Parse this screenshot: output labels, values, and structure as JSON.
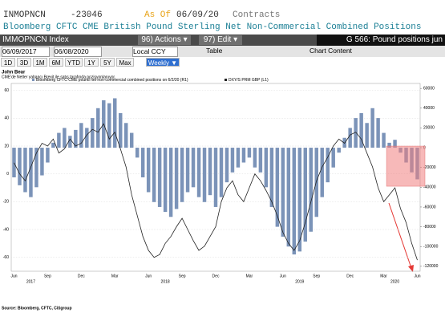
{
  "header": {
    "ticker": "INMOPNCN",
    "value": -23046,
    "as_of_label": "As Of",
    "date": "06/09/20",
    "unit": "Contracts",
    "description": "Bloomberg CFTC CME British Pound Sterling Net Non-Commercial Combined Positions"
  },
  "toolbar": {
    "security": "IMMOPNCN Index",
    "actions": "96) Actions ▾",
    "edit": "97) Edit ▾",
    "chart_name": "G 566: Pound positions jun",
    "start_date": "06/09/2017",
    "end_date": "06/08/2020",
    "currency": "Local CCY",
    "table": "Table",
    "chart_content": "Chart Content",
    "periods": [
      "1D",
      "3D",
      "1M",
      "6M",
      "YTD",
      "1Y",
      "5Y",
      "Max"
    ],
    "frequency": "Weekly ▼"
  },
  "chart_data": {
    "type": "combo",
    "title": "John Bear",
    "subtitle": "CME'de Netler yabancı Brexit ile satış tarafında pozisyonlanıyor.",
    "source": "Source: Bloomberg, CFTC, Citigroup",
    "categories": [
      "Jun",
      null,
      null,
      null,
      null,
      null,
      "Sep",
      null,
      null,
      null,
      null,
      null,
      "Dec",
      null,
      null,
      null,
      null,
      null,
      "Mar",
      null,
      null,
      null,
      null,
      null,
      "Jun",
      null,
      null,
      null,
      null,
      null,
      "Sep",
      null,
      null,
      null,
      null,
      null,
      "Dec",
      null,
      null,
      null,
      null,
      null,
      "Mar",
      null,
      null,
      null,
      null,
      null,
      "Jun",
      null,
      null,
      null,
      null,
      null,
      "Sep",
      null,
      null,
      null,
      null,
      null,
      "Dec",
      null,
      null,
      null,
      null,
      null,
      "Mar",
      null,
      null,
      null,
      null,
      null,
      "Jun"
    ],
    "year_categories": [
      null,
      null,
      null,
      "2017",
      null,
      null,
      null,
      null,
      null,
      null,
      null,
      null,
      null,
      null,
      null,
      null,
      null,
      null,
      null,
      null,
      null,
      null,
      null,
      null,
      null,
      null,
      null,
      "2018",
      null,
      null,
      null,
      null,
      null,
      null,
      null,
      null,
      null,
      null,
      null,
      null,
      null,
      null,
      null,
      null,
      null,
      null,
      null,
      null,
      null,
      null,
      null,
      "2019",
      null,
      null,
      null,
      null,
      null,
      null,
      null,
      null,
      null,
      null,
      null,
      null,
      null,
      null,
      null,
      null,
      "2020",
      null,
      null,
      null,
      null
    ],
    "series": [
      {
        "name": "Bloomberg CFTC CME pound net non-commercial combined positions on 6/2/20 (R1)",
        "color": "#7b93b8",
        "axis": "y2",
        "values": [
          -30000,
          -38000,
          -45000,
          -50000,
          -40000,
          -28000,
          -15000,
          5000,
          15000,
          20000,
          12000,
          18000,
          25000,
          20000,
          30000,
          40000,
          48000,
          45000,
          50000,
          35000,
          25000,
          15000,
          -10000,
          -30000,
          -45000,
          -55000,
          -60000,
          -65000,
          -70000,
          -62000,
          -55000,
          -45000,
          -40000,
          -50000,
          -55000,
          -48000,
          -60000,
          -50000,
          -35000,
          -25000,
          -20000,
          -15000,
          -10000,
          -20000,
          -25000,
          -40000,
          -60000,
          -80000,
          -90000,
          -100000,
          -108000,
          -105000,
          -95000,
          -85000,
          -70000,
          -50000,
          -35000,
          -20000,
          -5000,
          10000,
          20000,
          30000,
          35000,
          25000,
          40000,
          30000,
          15000,
          5000,
          8000,
          -5000,
          -15000,
          -25000,
          -32000
        ]
      },
      {
        "name": "DXY/S PRM GBP (L1)",
        "color": "#222222",
        "values": [
          8,
          0,
          -5,
          5,
          15,
          22,
          20,
          25,
          15,
          18,
          25,
          20,
          22,
          28,
          32,
          30,
          36,
          25,
          30,
          18,
          5,
          -15,
          -30,
          -45,
          -55,
          -60,
          -58,
          -50,
          -45,
          -38,
          -32,
          -40,
          -48,
          -55,
          -52,
          -45,
          -38,
          -20,
          -10,
          -5,
          -15,
          -20,
          -10,
          0,
          -5,
          -12,
          -20,
          -30,
          -42,
          -50,
          -55,
          -48,
          -35,
          -20,
          -5,
          5,
          12,
          20,
          25,
          22,
          28,
          30,
          25,
          15,
          5,
          -10,
          -20,
          -15,
          -10,
          -25,
          -35,
          -50,
          -62
        ]
      }
    ],
    "ylim": [
      -70,
      65
    ],
    "yticks": [
      60,
      40,
      20,
      0,
      -20,
      -40,
      -60
    ],
    "y2lim": [
      -125000,
      65000
    ],
    "y2ticks": [
      60000,
      40000,
      20000,
      0,
      -20000,
      -40000,
      -60000,
      -80000,
      -100000,
      -120000
    ],
    "grid": true,
    "highlight_color": "#f08080"
  }
}
